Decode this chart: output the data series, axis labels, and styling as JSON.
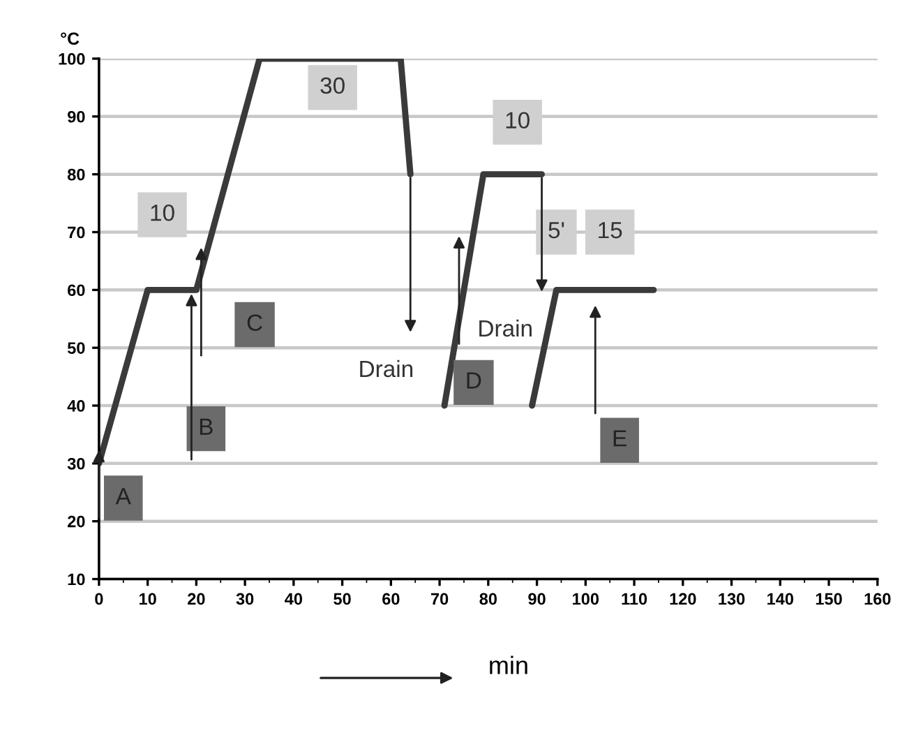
{
  "chart_data": {
    "type": "line",
    "xlabel": "min",
    "ylabel": "°C",
    "series": [
      {
        "color": "#3a3a3a",
        "x": [
          0,
          10,
          20,
          33,
          62,
          64
        ],
        "values": [
          30,
          60,
          60,
          100,
          100,
          80
        ]
      },
      {
        "color": "#3a3a3a",
        "x": [
          71,
          79,
          91
        ],
        "values": [
          40,
          80,
          80
        ]
      },
      {
        "color": "#3a3a3a",
        "x": [
          89,
          94,
          114
        ],
        "values": [
          40,
          60,
          60
        ]
      }
    ],
    "annotations": [
      "A",
      {
        "text": "B",
        "x": 19,
        "y": 60
      },
      "C",
      "D",
      "E",
      {
        "text": "Drain",
        "x": 64,
        "y": 80
      },
      "Drain",
      "10",
      "30",
      "10",
      "5'",
      "15"
    ],
    "xlim": [
      0,
      160
    ],
    "ylim": [
      10,
      100
    ],
    "xticks": [
      0,
      10,
      20,
      30,
      40,
      50,
      60,
      70,
      80,
      90,
      100,
      110,
      120,
      130,
      140,
      150,
      160
    ],
    "yticks": [
      10,
      20,
      30,
      40,
      50,
      60,
      70,
      80,
      90,
      100
    ],
    "grid": "y",
    "marker": "none",
    "line_style": "solid"
  }
}
